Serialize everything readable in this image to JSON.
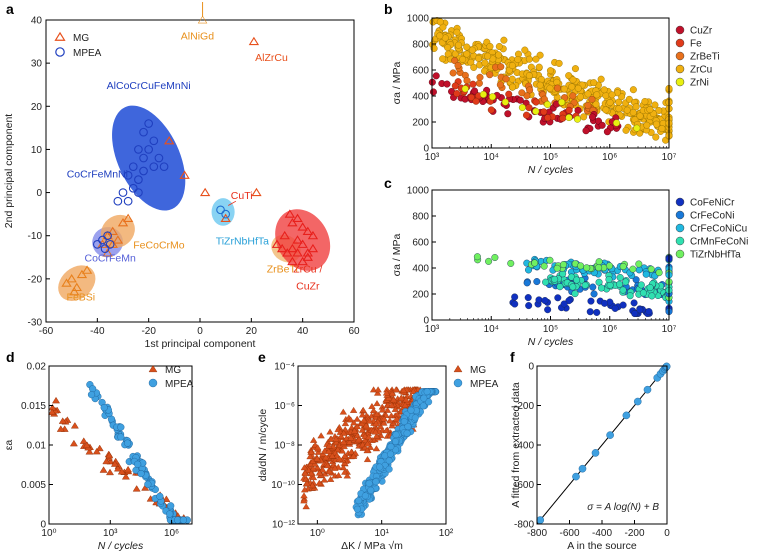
{
  "chart_data": [
    {
      "panel": "a",
      "type": "scatter",
      "xlabel": "1st principal component",
      "ylabel": "2nd principal component",
      "xlim": [
        -60,
        60
      ],
      "ylim": [
        -30,
        40
      ],
      "xticks": [
        -60,
        -40,
        -20,
        0,
        20,
        40,
        60
      ],
      "yticks": [
        -30,
        -20,
        -10,
        0,
        10,
        20,
        30,
        40
      ],
      "legend": [
        "MG",
        "MPEA"
      ],
      "colors": {
        "MG": "#e8501c",
        "MPEA": "#1f3fbf"
      },
      "series": [
        {
          "name": "MG",
          "marker": "triangle",
          "points": [
            [
              -12,
              12
            ],
            [
              -6,
              4
            ],
            [
              2,
              0
            ],
            [
              22,
              0
            ],
            [
              10,
              -6
            ],
            [
              -50,
              -20
            ],
            [
              -48,
              -22
            ],
            [
              -46,
              -19
            ],
            [
              -44,
              -18
            ],
            [
              -52,
              -21
            ],
            [
              -49,
              -23
            ],
            [
              -38,
              -12
            ],
            [
              -36,
              -10
            ],
            [
              -34,
              -9
            ],
            [
              -30,
              -7
            ],
            [
              -28,
              -6
            ],
            [
              -32,
              -11
            ],
            [
              -36,
              -14
            ],
            [
              -34,
              -12
            ],
            [
              30,
              -12
            ],
            [
              32,
              -13
            ],
            [
              34,
              -14
            ],
            [
              36,
              -16
            ],
            [
              33,
              -10
            ],
            [
              35,
              -5
            ],
            [
              36,
              -7
            ],
            [
              38,
              -6
            ],
            [
              40,
              -8
            ],
            [
              42,
              -9
            ],
            [
              44,
              -10
            ],
            [
              38,
              -11
            ],
            [
              40,
              -12
            ],
            [
              36,
              -13
            ],
            [
              38,
              -14
            ],
            [
              42,
              -14
            ],
            [
              40,
              -16
            ],
            [
              44,
              -13
            ],
            [
              42,
              -15
            ]
          ]
        },
        {
          "name": "MPEA",
          "marker": "circle",
          "points": [
            [
              -20,
              16
            ],
            [
              -22,
              14
            ],
            [
              -18,
              12
            ],
            [
              -24,
              10
            ],
            [
              -20,
              10
            ],
            [
              -16,
              8
            ],
            [
              -22,
              8
            ],
            [
              -26,
              6
            ],
            [
              -18,
              6
            ],
            [
              -14,
              6
            ],
            [
              -22,
              5
            ],
            [
              -28,
              4
            ],
            [
              -24,
              3
            ],
            [
              -26,
              1
            ],
            [
              -30,
              0
            ],
            [
              -32,
              -2
            ],
            [
              -28,
              -2
            ],
            [
              -24,
              0
            ],
            [
              -36,
              -10
            ],
            [
              -38,
              -11
            ],
            [
              -40,
              -12
            ],
            [
              -37,
              -13
            ],
            [
              -35,
              -12
            ],
            [
              8,
              -4
            ],
            [
              10,
              -5
            ]
          ]
        }
      ],
      "groups": [
        {
          "label": "AlCoCrCuFeMnNi",
          "color": "#1f3fbf"
        },
        {
          "label": "CoCrFeMnNi",
          "color": "#1f3fbf"
        },
        {
          "label": "FeCoCrMo",
          "color": "#e8901c"
        },
        {
          "label": "CoCrFeMn",
          "color": "#5560d8"
        },
        {
          "label": "FeBSi",
          "color": "#e8901c"
        },
        {
          "label": "TiZrNbHfTa",
          "color": "#28a0d8"
        },
        {
          "label": "CuTi",
          "color": "#e8301c"
        },
        {
          "label": "ZrBeTi",
          "color": "#e8901c"
        },
        {
          "label": "ZrCu /",
          "color": "#e8301c"
        },
        {
          "label": "CuZr",
          "color": "#e8301c"
        },
        {
          "label": "AlNiGd",
          "color": "#e8901c"
        },
        {
          "label": "AlZrCu",
          "color": "#e8501c"
        }
      ]
    },
    {
      "panel": "b",
      "type": "scatter",
      "xlabel": "N  / cycles",
      "ylabel": "σa / MPa",
      "xscale": "log",
      "xlim": [
        1000,
        10000000
      ],
      "ylim": [
        0,
        1000
      ],
      "xtick_labels": [
        "10³",
        "10⁴",
        "10⁵",
        "10⁶",
        "10⁷"
      ],
      "yticks": [
        0,
        200,
        400,
        600,
        800,
        1000
      ],
      "series": [
        {
          "name": "CuZr",
          "color": "#c0102a"
        },
        {
          "name": "Fe",
          "color": "#e03a1a"
        },
        {
          "name": "ZrBeTi",
          "color": "#e8701c"
        },
        {
          "name": "ZrCu",
          "color": "#f0b010"
        },
        {
          "name": "ZrNi",
          "color": "#e8f010"
        }
      ]
    },
    {
      "panel": "c",
      "type": "scatter",
      "xlabel": "N  / cycles",
      "ylabel": "σa / MPa",
      "xscale": "log",
      "xlim": [
        1000,
        10000000
      ],
      "ylim": [
        0,
        1000
      ],
      "xtick_labels": [
        "10³",
        "10⁴",
        "10⁵",
        "10⁶",
        "10⁷"
      ],
      "yticks": [
        0,
        200,
        400,
        600,
        800,
        1000
      ],
      "series": [
        {
          "name": "CoFeNiCr",
          "color": "#1030c0"
        },
        {
          "name": "CrFeCoNi",
          "color": "#1878d8"
        },
        {
          "name": "CrFeCoNiCu",
          "color": "#20b8e0"
        },
        {
          "name": "CrMnFeCoNi",
          "color": "#30e0b0"
        },
        {
          "name": "TiZrNbHfTa",
          "color": "#70f060"
        }
      ]
    },
    {
      "panel": "d",
      "type": "scatter",
      "xlabel": "N  / cycles",
      "ylabel": "εa",
      "xscale": "log",
      "xlim": [
        1,
        10000000
      ],
      "ylim": [
        0,
        0.02
      ],
      "xtick_labels": [
        "10⁰",
        "10³",
        "10⁶"
      ],
      "yticks": [
        0,
        0.005,
        0.01,
        0.015,
        0.02
      ],
      "ytick_labels": [
        "0",
        "0.005",
        "0.01",
        "0.015",
        "0.02"
      ],
      "series": [
        {
          "name": "MG",
          "marker": "triangle",
          "color": "#d8501c"
        },
        {
          "name": "MPEA",
          "marker": "circle",
          "color": "#3fa0e0"
        }
      ]
    },
    {
      "panel": "e",
      "type": "scatter",
      "xlabel": "ΔK / MPa √m",
      "ylabel": "da/dN / m/cycle",
      "xscale": "log",
      "yscale": "log",
      "xlim": [
        0.5,
        100
      ],
      "ylim": [
        1e-12,
        0.0001
      ],
      "xtick_labels": [
        "10⁰",
        "10¹",
        "10²"
      ],
      "ytick_labels": [
        "10⁻¹²",
        "10⁻¹⁰",
        "10⁻⁸",
        "10⁻⁶",
        "10⁻⁴"
      ],
      "series": [
        {
          "name": "MG",
          "marker": "triangle",
          "color": "#d8501c"
        },
        {
          "name": "MPEA",
          "marker": "circle",
          "color": "#3fa0e0"
        }
      ]
    },
    {
      "panel": "f",
      "type": "scatter",
      "xlabel": "A in the source",
      "ylabel": "A fitted from extracted data",
      "xlim": [
        -800,
        0
      ],
      "ylim": [
        -800,
        0
      ],
      "xticks": [
        -800,
        -600,
        -400,
        -200,
        0
      ],
      "yticks": [
        -800,
        -600,
        -400,
        -200,
        0
      ],
      "annotation": "σ = A log(N) + B",
      "points": [
        [
          -780,
          -780
        ],
        [
          -560,
          -560
        ],
        [
          -520,
          -520
        ],
        [
          -440,
          -440
        ],
        [
          -350,
          -350
        ],
        [
          -250,
          -250
        ],
        [
          -180,
          -180
        ],
        [
          -120,
          -120
        ],
        [
          -60,
          -60
        ],
        [
          -40,
          -40
        ],
        [
          -25,
          -25
        ],
        [
          -15,
          -15
        ],
        [
          -8,
          -8
        ],
        [
          -4,
          -4
        ],
        [
          -2,
          -2
        ]
      ]
    }
  ],
  "panel_labels": {
    "a": "a",
    "b": "b",
    "c": "c",
    "d": "d",
    "e": "e",
    "f": "f"
  }
}
